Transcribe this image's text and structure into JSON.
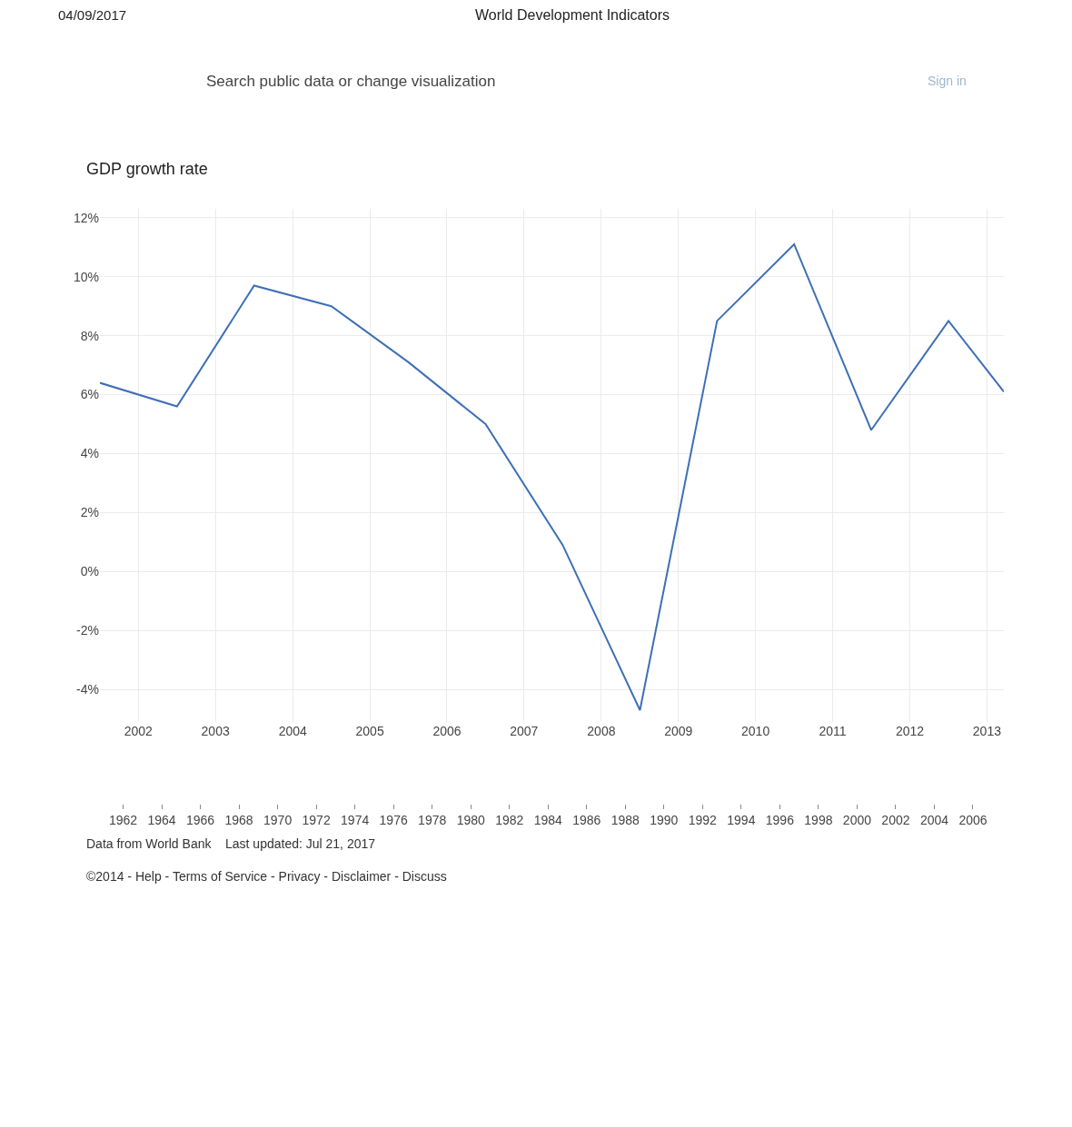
{
  "chart_data": {
    "type": "line",
    "title": "GDP growth rate",
    "annotations": [
      "04/09/2017",
      "World Development Indicators",
      "Search public data or change visualization",
      "Sign in",
      "Data from World Bank    Last updated: Jul 21, 2017",
      "©2014 - Help - Terms of Service - Privacy - Disclaimer - Discuss"
    ],
    "x": [
      "2002-01-01",
      "2003-01-01",
      "2004-01-01",
      "2005-01-01",
      "2006-01-01",
      "2007-01-01",
      "2008-01-01",
      "2009-01-01",
      "2010-01-01",
      "2011-01-01",
      "2012-01-01",
      "2013-01-01",
      "2013-09-20"
    ],
    "series": [
      {
        "color": "#3d6fb5",
        "values": [
          6.4,
          5.6,
          9.7,
          9.0,
          7.1,
          5.0,
          0.9,
          -4.7,
          8.5,
          11.1,
          4.8,
          8.5,
          6.1
        ]
      }
    ],
    "xlim": [
      "2002-01-01",
      "2013-09-20"
    ],
    "xticks": [
      {
        "value": "2002-07-02",
        "label": "2002"
      },
      {
        "value": "2003-07-02",
        "label": "2003"
      },
      {
        "value": "2004-07-02",
        "label": "2004"
      },
      {
        "value": "2005-07-02",
        "label": "2005"
      },
      {
        "value": "2006-07-02",
        "label": "2006"
      },
      {
        "value": "2007-07-02",
        "label": "2007"
      },
      {
        "value": "2008-07-02",
        "label": "2008"
      },
      {
        "value": "2009-07-02",
        "label": "2009"
      },
      {
        "value": "2010-07-02",
        "label": "2010"
      },
      {
        "value": "2011-07-02",
        "label": "2011"
      },
      {
        "value": "2012-07-02",
        "label": "2012"
      },
      {
        "value": "2013-07-02",
        "label": "2013"
      }
    ],
    "ylim": [
      -5.1,
      12.3
    ],
    "yticks": [
      {
        "value": -4,
        "label": "-4%"
      },
      {
        "value": -2,
        "label": "-2%"
      },
      {
        "value": 0,
        "label": "0%"
      },
      {
        "value": 2,
        "label": "2%"
      },
      {
        "value": 4,
        "label": "4%"
      },
      {
        "value": 6,
        "label": "6%"
      },
      {
        "value": 8,
        "label": "8%"
      },
      {
        "value": 10,
        "label": "10%"
      },
      {
        "value": 12,
        "label": "12%"
      }
    ],
    "x2lim": [
      1960.8,
      2007.6
    ],
    "x2ticks": [
      1962,
      1964,
      1966,
      1968,
      1970,
      1972,
      1974,
      1976,
      1978,
      1980,
      1982,
      1984,
      1986,
      1988,
      1990,
      1992,
      1994,
      1996,
      1998,
      2000,
      2002,
      2004,
      2006
    ],
    "grid": true,
    "marker": "none",
    "line_style": "solid"
  }
}
